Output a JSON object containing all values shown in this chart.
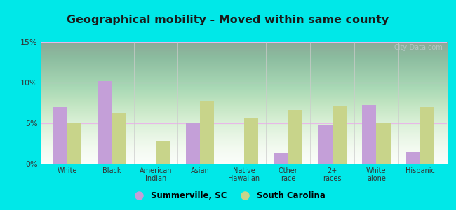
{
  "title": "Geographical mobility - Moved within same county",
  "categories": [
    "White",
    "Black",
    "American\nIndian",
    "Asian",
    "Native\nHawaiian",
    "Other\nrace",
    "2+\nraces",
    "White\nalone",
    "Hispanic"
  ],
  "summerville_values": [
    7.0,
    10.2,
    0.0,
    5.0,
    0.0,
    1.3,
    4.7,
    7.2,
    1.5
  ],
  "sc_values": [
    5.0,
    6.2,
    2.8,
    7.8,
    5.7,
    6.6,
    7.1,
    5.0,
    7.0
  ],
  "summerville_color": "#c49fd8",
  "sc_color": "#c8d48a",
  "ylim": [
    0,
    15
  ],
  "yticks": [
    0,
    5,
    10,
    15
  ],
  "ytick_labels": [
    "0%",
    "5%",
    "10%",
    "15%"
  ],
  "background_color": "#00e8e8",
  "watermark": "City-Data.com",
  "legend_summerville": "Summerville, SC",
  "legend_sc": "South Carolina",
  "grid_color": "#e8c8e8",
  "separator_color": "#cccccc"
}
